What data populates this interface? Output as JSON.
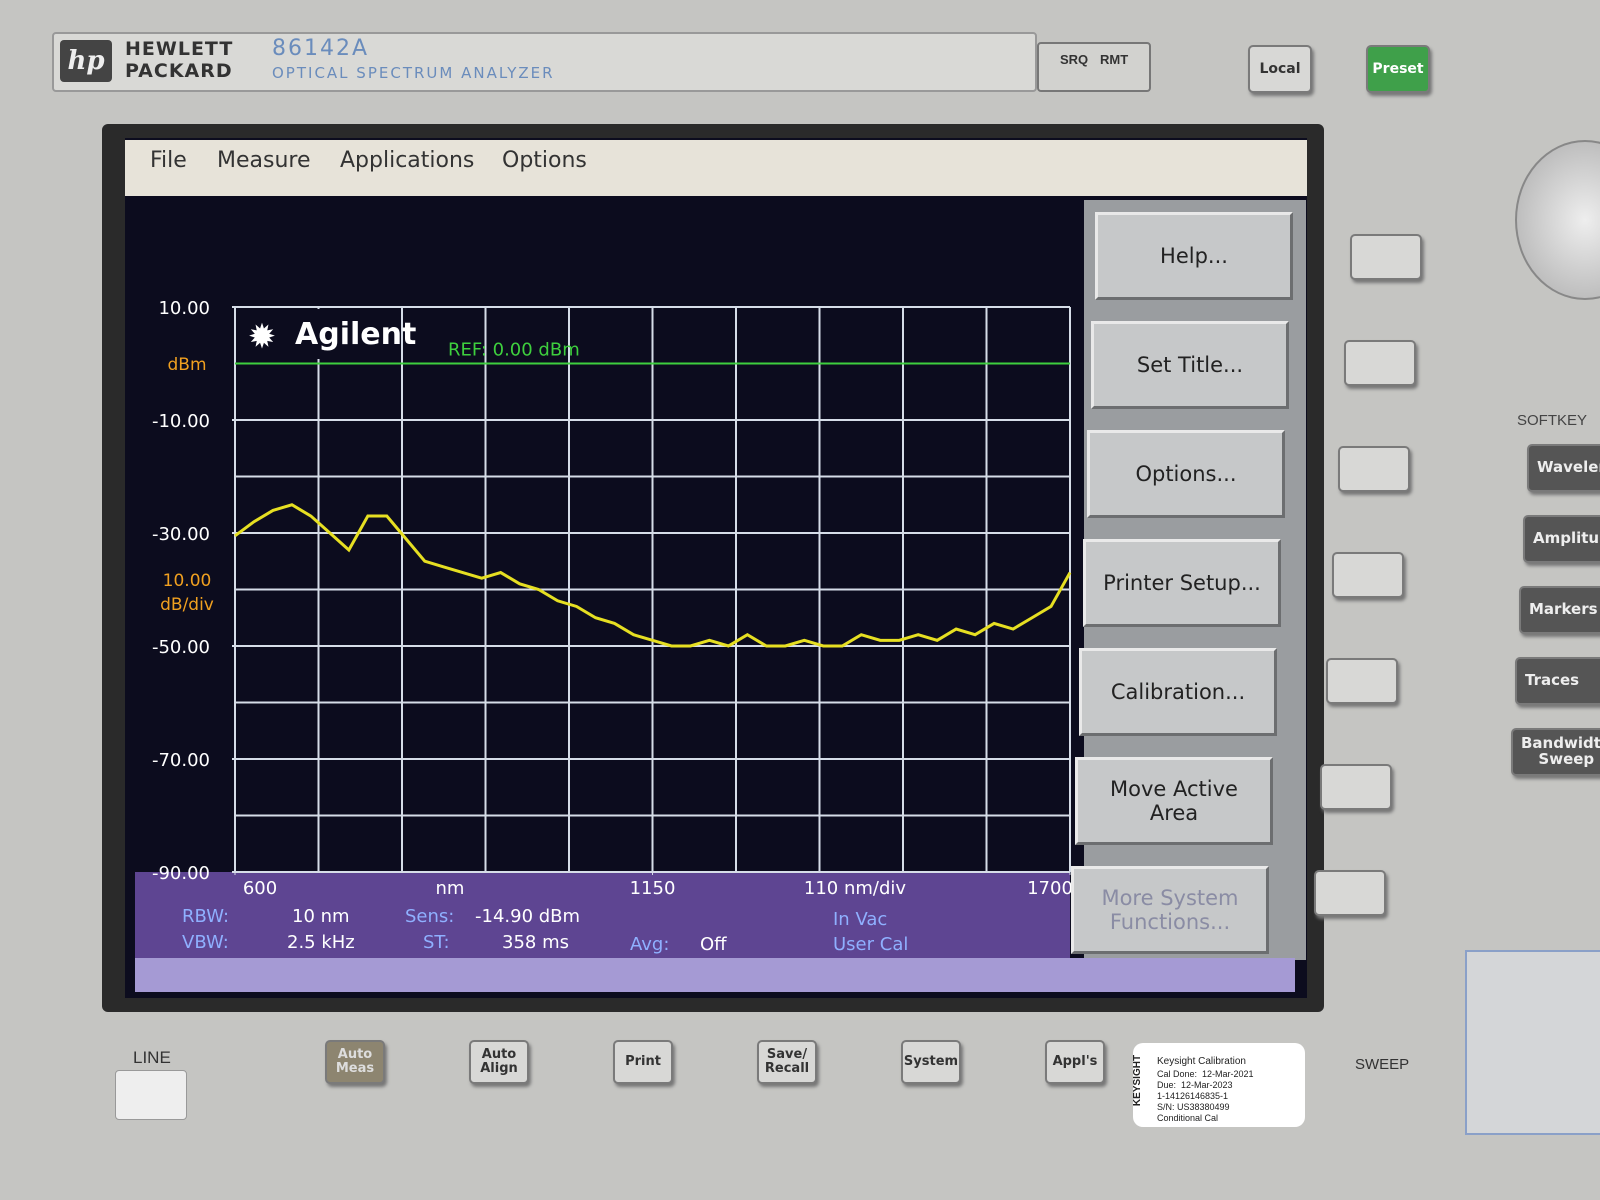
{
  "header": {
    "brand_line1": "HEWLETT",
    "brand_line2": "PACKARD",
    "model": "86142A",
    "subtitle": "OPTICAL SPECTRUM ANALYZER",
    "srq": "SRQ",
    "rmt": "RMT",
    "local": "Local",
    "preset": "Preset"
  },
  "menu": [
    "File",
    "Measure",
    "Applications",
    "Options"
  ],
  "screen": {
    "logo": "Agilent",
    "ref_label": "REF: 0.00 dBm",
    "ref_level": 0,
    "ylim": [
      10,
      -90
    ],
    "yticks": [
      {
        "value": 10,
        "label": "10.00"
      },
      {
        "value": -10,
        "label": "-10.00"
      },
      {
        "value": -30,
        "label": "-30.00"
      },
      {
        "value": -50,
        "label": "-50.00"
      },
      {
        "value": -70,
        "label": "-70.00"
      },
      {
        "value": -90,
        "label": "-90.00"
      }
    ],
    "y_unit": "dBm",
    "y_div": {
      "value": 10,
      "label": "10.00"
    },
    "y_div_unit": "dB/div",
    "xlim": [
      600,
      1700
    ],
    "xticks": [
      600,
      1150,
      1700
    ],
    "x_unit": "nm",
    "x_div": {
      "value": 110,
      "label": "110 nm/div"
    },
    "trace": {
      "color": "#e6df22",
      "x": [
        600,
        625,
        650,
        675,
        700,
        725,
        750,
        775,
        800,
        825,
        850,
        875,
        900,
        925,
        950,
        975,
        1000,
        1025,
        1050,
        1075,
        1100,
        1125,
        1150,
        1175,
        1200,
        1225,
        1250,
        1275,
        1300,
        1325,
        1350,
        1375,
        1400,
        1425,
        1450,
        1475,
        1500,
        1525,
        1550,
        1575,
        1600,
        1625,
        1650,
        1675,
        1700
      ],
      "values": [
        -30.5,
        -28,
        -26,
        -25,
        -27,
        -30,
        -33,
        -27,
        -27,
        -31,
        -35,
        -36,
        -37,
        -38,
        -37,
        -39,
        -40,
        -42,
        -43,
        -45,
        -46,
        -48,
        -49,
        -50,
        -50,
        -49,
        -50,
        -48,
        -50,
        -50,
        -49,
        -50,
        -50,
        -48,
        -49,
        -49,
        -48,
        -49,
        -47,
        -48,
        -46,
        -47,
        -45,
        -43,
        -37
      ]
    },
    "status": {
      "rbw_label": "RBW:",
      "rbw": "10 nm",
      "vbw_label": "VBW:",
      "vbw": "2.5 kHz",
      "sens_label": "Sens:",
      "sens": "-14.90 dBm",
      "st_label": "ST:",
      "st": "358 ms",
      "avg_label": "Avg:",
      "avg": "Off",
      "medium": "In Vac",
      "cal": "User Cal"
    }
  },
  "softkeys": [
    "Help...",
    "Set Title...",
    "Options...",
    "Printer Setup...",
    "Calibration...",
    "Move Active Area",
    "More System Functions..."
  ],
  "side_panel": {
    "title": "SOFTKEY",
    "keys": [
      "Waveler",
      "Amplitu",
      "Markers",
      "Traces",
      "Bandwidth Sweep"
    ]
  },
  "bottom_keys": {
    "line": "LINE",
    "keys": [
      "Auto Meas",
      "Auto Align",
      "Print",
      "Save/ Recall",
      "System",
      "Appl's"
    ],
    "sweep": "SWEEP"
  },
  "sticker": {
    "brand": "KEYSIGHT",
    "title": "Keysight Calibration",
    "lines": [
      "Cal Done:  12-Mar-2021",
      "Due:  12-Mar-2023",
      "1-14126146835-1",
      "S/N: US38380499",
      "Conditional Cal"
    ]
  }
}
